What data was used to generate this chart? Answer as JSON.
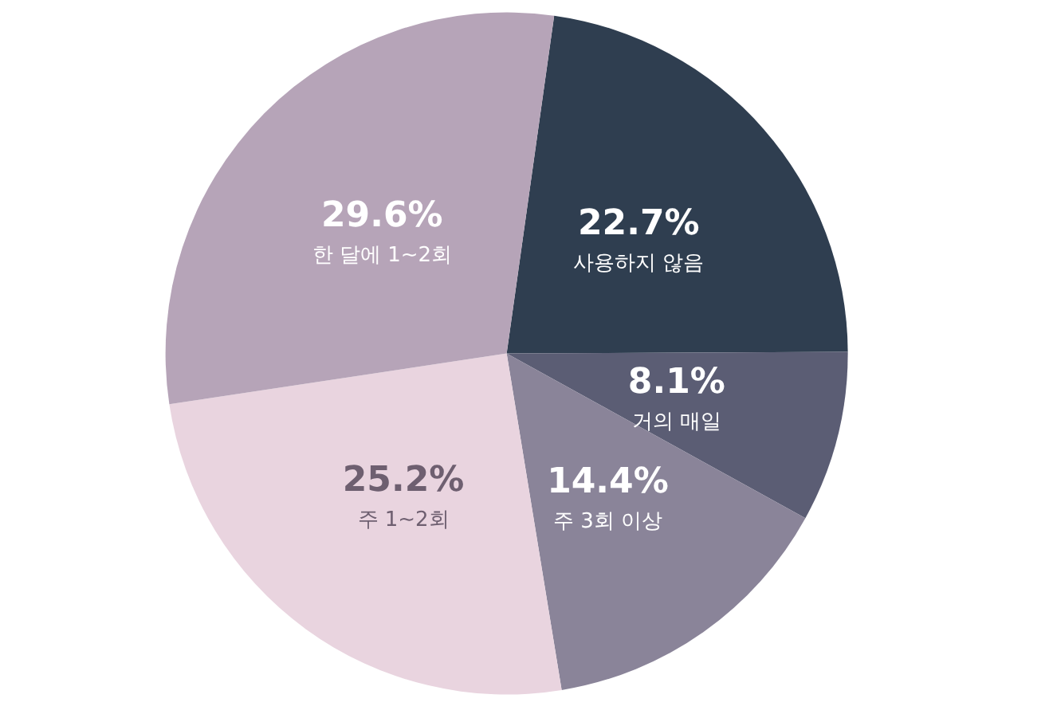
{
  "chart_data": {
    "type": "pie",
    "categories": [
      "사용하지 않음",
      "거의 매일",
      "주 3회 이상",
      "주 1~2회",
      "한 달에 1~2회"
    ],
    "values": [
      22.7,
      8.1,
      14.4,
      25.2,
      29.6
    ],
    "value_labels": [
      "22.7%",
      "8.1%",
      "14.4%",
      "25.2%",
      "29.6%"
    ],
    "colors": [
      "#2f3e50",
      "#5b5d74",
      "#8a8499",
      "#e9d4df",
      "#b6a4b8"
    ],
    "legend": false
  }
}
